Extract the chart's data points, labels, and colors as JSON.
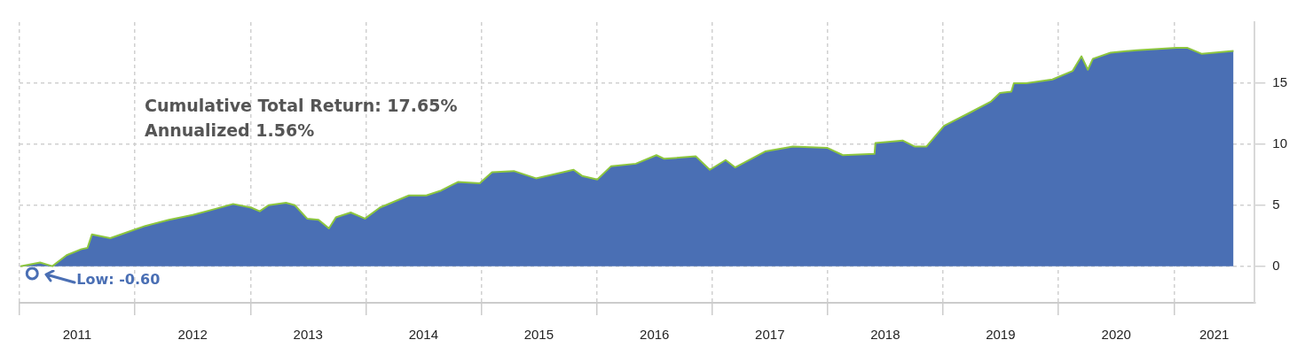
{
  "chart_data": {
    "type": "area",
    "annotations": [
      "Cumulative Total Return: 17.65%",
      "Annualized 1.56%",
      "Low: -0.60"
    ],
    "xlim": [
      "2011-01-01",
      "2021-09-13"
    ],
    "xticks": [
      {
        "value": "2011-01-01",
        "label": null
      },
      {
        "value": "2011-07-02",
        "label": "2011"
      },
      {
        "value": "2012-01-01",
        "label": null
      },
      {
        "value": "2012-07-02",
        "label": "2012"
      },
      {
        "value": "2013-01-01",
        "label": null
      },
      {
        "value": "2013-07-02",
        "label": "2013"
      },
      {
        "value": "2014-01-01",
        "label": null
      },
      {
        "value": "2014-07-02",
        "label": "2014"
      },
      {
        "value": "2015-01-01",
        "label": null
      },
      {
        "value": "2015-07-02",
        "label": "2015"
      },
      {
        "value": "2016-01-01",
        "label": null
      },
      {
        "value": "2016-07-02",
        "label": "2016"
      },
      {
        "value": "2017-01-01",
        "label": null
      },
      {
        "value": "2017-07-02",
        "label": "2017"
      },
      {
        "value": "2018-01-01",
        "label": null
      },
      {
        "value": "2018-07-02",
        "label": "2018"
      },
      {
        "value": "2019-01-01",
        "label": null
      },
      {
        "value": "2019-07-02",
        "label": "2019"
      },
      {
        "value": "2020-01-01",
        "label": null
      },
      {
        "value": "2020-07-02",
        "label": "2020"
      },
      {
        "value": "2021-01-01",
        "label": null
      },
      {
        "value": "2021-05-08",
        "label": "2021"
      }
    ],
    "ylim": [
      -3,
      20
    ],
    "yticks": [
      0,
      5,
      10,
      15
    ],
    "grid": true,
    "legend": false,
    "series": [
      {
        "color": "#4a6fb4",
        "x": [
          "2011-01-04",
          "2011-03-07",
          "2011-04-15",
          "2011-05-30",
          "2011-07-16",
          "2011-08-04",
          "2011-08-18",
          "2011-10-15",
          "2011-12-10",
          "2012-02-03",
          "2012-04-18",
          "2012-07-02",
          "2012-09-12",
          "2012-11-07",
          "2013-01-03",
          "2013-01-30",
          "2013-02-27",
          "2013-04-23",
          "2013-05-21",
          "2013-06-29",
          "2013-08-04",
          "2013-09-06",
          "2013-09-28",
          "2013-11-14",
          "2013-12-29",
          "2014-02-14",
          "2014-05-17",
          "2014-07-11",
          "2014-08-27",
          "2014-10-19",
          "2014-12-27",
          "2015-02-04",
          "2015-04-14",
          "2015-06-23",
          "2015-10-20",
          "2015-11-16",
          "2016-01-03",
          "2016-02-16",
          "2016-05-04",
          "2016-07-08",
          "2016-08-02",
          "2016-11-10",
          "2016-12-24",
          "2017-02-12",
          "2017-03-14",
          "2017-06-17",
          "2017-09-13",
          "2017-12-30",
          "2018-02-18",
          "2018-05-29",
          "2018-06-01",
          "2018-08-26",
          "2018-10-04",
          "2018-11-09",
          "2019-01-04",
          "2019-03-28",
          "2019-06-02",
          "2019-06-30",
          "2019-08-05",
          "2019-08-13",
          "2019-09-21",
          "2019-12-13",
          "2020-02-15",
          "2020-03-14",
          "2020-04-03",
          "2020-04-19",
          "2020-06-14",
          "2020-09-05",
          "2021-01-08",
          "2021-02-11",
          "2021-03-30",
          "2021-07-08"
        ],
        "values": [
          0,
          0.3,
          0,
          0.9,
          1.4,
          1.5,
          2.6,
          2.3,
          2.8,
          3.3,
          3.8,
          4.2,
          4.7,
          5.1,
          4.8,
          4.5,
          5.0,
          5.2,
          5.0,
          3.9,
          3.8,
          3.1,
          4.0,
          4.4,
          3.9,
          4.8,
          5.8,
          5.8,
          6.2,
          6.9,
          6.8,
          7.7,
          7.8,
          7.2,
          7.9,
          7.4,
          7.1,
          8.2,
          8.4,
          9.1,
          8.8,
          9.0,
          7.9,
          8.7,
          8.1,
          9.4,
          9.8,
          9.7,
          9.1,
          9.2,
          10.1,
          10.3,
          9.8,
          9.8,
          11.5,
          12.6,
          13.5,
          14.2,
          14.3,
          15.0,
          15.0,
          15.3,
          16.0,
          17.2,
          16.1,
          17.0,
          17.5,
          17.7,
          17.9,
          17.9,
          17.4,
          17.65
        ]
      },
      {
        "type": "scatter",
        "color": "#4a6fb4",
        "marker": "circle",
        "x": [
          "2011-02-10"
        ],
        "values": [
          -0.6
        ]
      }
    ]
  }
}
